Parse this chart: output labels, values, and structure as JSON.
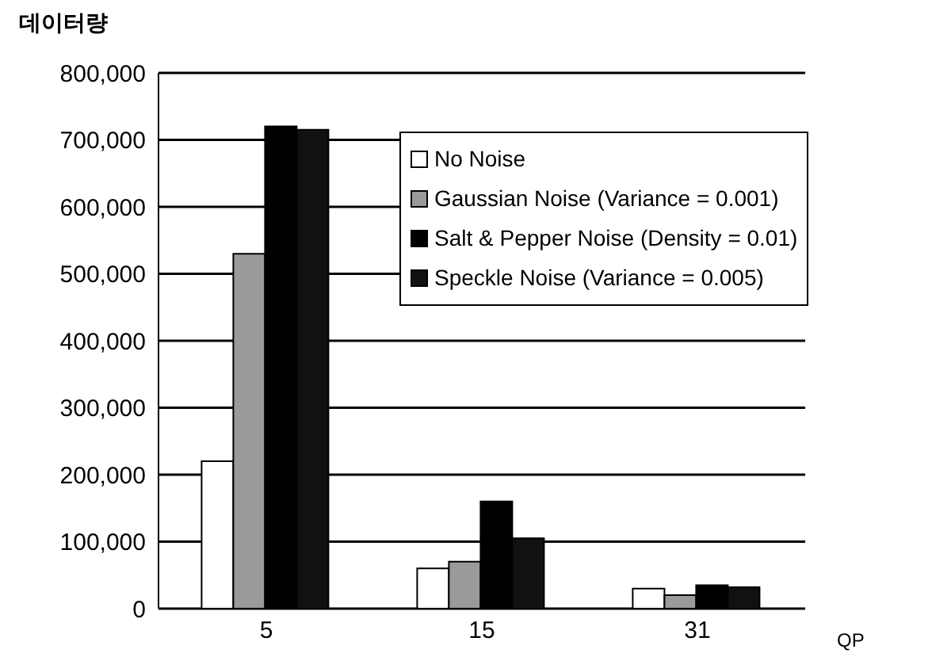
{
  "chart_data": {
    "type": "bar",
    "ylabel": "데이터량",
    "xlabel": "QP",
    "categories": [
      "5",
      "15",
      "31"
    ],
    "series": [
      {
        "name": "No Noise",
        "color": "#ffffff",
        "values": [
          220000,
          60000,
          30000
        ]
      },
      {
        "name": "Gaussian Noise (Variance = 0.001)",
        "color": "#9a9a9a",
        "values": [
          530000,
          70000,
          20000
        ]
      },
      {
        "name": "Salt & Pepper Noise (Density = 0.01)",
        "color": "#000000",
        "values": [
          720000,
          160000,
          35000
        ]
      },
      {
        "name": "Speckle Noise (Variance = 0.005)",
        "color": "#111111",
        "values": [
          715000,
          105000,
          32000
        ]
      }
    ],
    "ylim": [
      0,
      800000
    ],
    "yticks": [
      0,
      {
        "value": 100000,
        "label": "100,000"
      },
      {
        "value": 200000,
        "label": "200,000"
      },
      {
        "value": 300000,
        "label": "300,000"
      },
      {
        "value": 400000,
        "label": "400,000"
      },
      {
        "value": 500000,
        "label": "500,000"
      },
      {
        "value": 600000,
        "label": "600,000"
      },
      {
        "value": 700000,
        "label": "700,000"
      },
      {
        "value": 800000,
        "label": "800,000"
      }
    ],
    "grid": "y",
    "legend": "top right"
  }
}
